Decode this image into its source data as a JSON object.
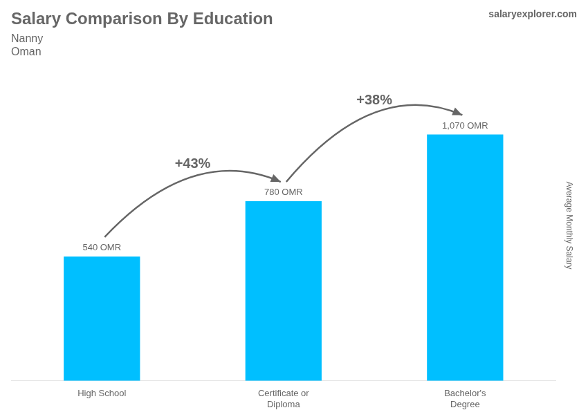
{
  "chart_data": {
    "type": "bar",
    "title": "Salary Comparison By Education",
    "subtitle": [
      "Nanny",
      "Oman"
    ],
    "source": "salaryexplorer.com",
    "ylabel": "Average Monthly Salary",
    "categories": [
      "High School",
      "Certificate or\nDiploma",
      "Bachelor's\nDegree"
    ],
    "values": [
      540,
      780,
      1070
    ],
    "value_labels": [
      "540 OMR",
      "780 OMR",
      "1,070 OMR"
    ],
    "data_labels": true,
    "color": "#00BFFF",
    "ylim": [
      0,
      1350
    ],
    "grid": false,
    "tick_labels": "x",
    "annotations": [
      "+43%",
      "+38%"
    ]
  }
}
